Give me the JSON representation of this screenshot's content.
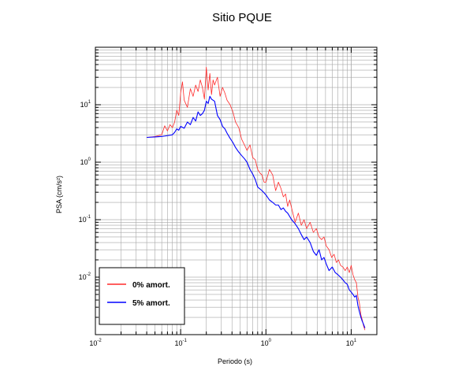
{
  "chart_data": {
    "type": "line",
    "title": "Sitio PQUE",
    "xlabel": "Periodo (s)",
    "ylabel": "PSA (cm/s²)",
    "x_scale": "log",
    "y_scale": "log",
    "xlim": [
      0.01,
      20
    ],
    "ylim": [
      0.001,
      100
    ],
    "grid": true,
    "legend_position": "bottom-left",
    "x_ticks": [
      {
        "base": "10",
        "exp": "-2",
        "value": 0.01
      },
      {
        "base": "10",
        "exp": "-1",
        "value": 0.1
      },
      {
        "base": "10",
        "exp": "0",
        "value": 1
      },
      {
        "base": "10",
        "exp": "1",
        "value": 10
      }
    ],
    "y_ticks": [
      {
        "base": "10",
        "exp": "-2",
        "value": 0.01
      },
      {
        "base": "10",
        "exp": "-1",
        "value": 0.1
      },
      {
        "base": "10",
        "exp": "0",
        "value": 1
      },
      {
        "base": "10",
        "exp": "1",
        "value": 10
      }
    ],
    "series": [
      {
        "name": "0% amort.",
        "color": "#ff2a2a",
        "x": [
          0.04,
          0.05,
          0.06,
          0.065,
          0.07,
          0.075,
          0.08,
          0.085,
          0.09,
          0.095,
          0.1,
          0.105,
          0.11,
          0.12,
          0.13,
          0.14,
          0.15,
          0.16,
          0.17,
          0.18,
          0.19,
          0.2,
          0.21,
          0.22,
          0.23,
          0.24,
          0.25,
          0.27,
          0.29,
          0.31,
          0.33,
          0.35,
          0.38,
          0.41,
          0.44,
          0.48,
          0.52,
          0.56,
          0.6,
          0.65,
          0.7,
          0.75,
          0.8,
          0.85,
          0.9,
          0.95,
          1.0,
          1.1,
          1.2,
          1.3,
          1.4,
          1.5,
          1.6,
          1.7,
          1.8,
          1.9,
          2.0,
          2.2,
          2.4,
          2.6,
          2.8,
          3.0,
          3.3,
          3.6,
          3.9,
          4.2,
          4.5,
          4.8,
          5.1,
          5.5,
          5.9,
          6.3,
          6.7,
          7.1,
          7.5,
          8.0,
          8.5,
          9.0,
          9.5,
          10.0,
          10.5,
          11.0,
          11.5,
          12.0,
          12.5,
          13.0,
          13.5,
          14.0,
          14.5
        ],
        "y": [
          2.7,
          2.8,
          3.0,
          4.3,
          3.5,
          4.5,
          4.0,
          5.0,
          8.0,
          6.5,
          16.0,
          25.0,
          12.0,
          9.0,
          19.0,
          14.0,
          22.0,
          17.0,
          27.0,
          20.0,
          12.5,
          45.0,
          18.0,
          35.0,
          15.0,
          27.0,
          22.0,
          30.0,
          14.0,
          20.0,
          16.0,
          12.0,
          10.0,
          7.5,
          5.0,
          4.0,
          2.5,
          2.0,
          1.6,
          2.0,
          1.2,
          1.1,
          0.75,
          0.65,
          0.6,
          0.45,
          0.45,
          0.75,
          0.6,
          0.32,
          0.45,
          0.35,
          0.25,
          0.28,
          0.17,
          0.22,
          0.16,
          0.09,
          0.13,
          0.08,
          0.1,
          0.07,
          0.09,
          0.06,
          0.07,
          0.05,
          0.045,
          0.05,
          0.035,
          0.03,
          0.022,
          0.025,
          0.018,
          0.02,
          0.016,
          0.015,
          0.013,
          0.015,
          0.012,
          0.016,
          0.011,
          0.009,
          0.008,
          0.0045,
          0.0035,
          0.0022,
          0.0018,
          0.0014,
          0.0012
        ]
      },
      {
        "name": "5% amort.",
        "color": "#0000ff",
        "x": [
          0.04,
          0.05,
          0.06,
          0.07,
          0.08,
          0.085,
          0.09,
          0.095,
          0.1,
          0.11,
          0.12,
          0.13,
          0.14,
          0.15,
          0.16,
          0.17,
          0.18,
          0.19,
          0.2,
          0.21,
          0.22,
          0.23,
          0.25,
          0.27,
          0.29,
          0.31,
          0.33,
          0.35,
          0.38,
          0.41,
          0.44,
          0.48,
          0.52,
          0.56,
          0.6,
          0.65,
          0.7,
          0.75,
          0.8,
          0.9,
          1.0,
          1.1,
          1.2,
          1.3,
          1.4,
          1.5,
          1.6,
          1.7,
          1.8,
          2.0,
          2.2,
          2.4,
          2.6,
          2.8,
          3.0,
          3.3,
          3.6,
          3.9,
          4.2,
          4.5,
          4.8,
          5.1,
          5.5,
          6.0,
          6.5,
          7.0,
          7.5,
          8.0,
          8.5,
          9.0,
          9.5,
          10.0,
          10.5,
          11.0,
          11.5,
          12.0,
          12.5,
          13.0,
          13.5,
          14.0,
          14.5
        ],
        "y": [
          2.7,
          2.75,
          2.8,
          2.9,
          3.0,
          3.3,
          3.8,
          3.6,
          4.2,
          3.9,
          5.0,
          4.5,
          6.0,
          5.2,
          7.5,
          6.5,
          7.0,
          8.0,
          11.5,
          10.5,
          14.0,
          12.5,
          11.5,
          6.5,
          5.5,
          4.2,
          3.8,
          3.2,
          2.6,
          2.2,
          1.8,
          1.5,
          1.3,
          1.15,
          1.0,
          0.75,
          0.62,
          0.5,
          0.37,
          0.32,
          0.27,
          0.22,
          0.2,
          0.18,
          0.18,
          0.15,
          0.16,
          0.14,
          0.13,
          0.1,
          0.085,
          0.07,
          0.055,
          0.045,
          0.05,
          0.04,
          0.028,
          0.024,
          0.03,
          0.02,
          0.022,
          0.017,
          0.013,
          0.015,
          0.012,
          0.011,
          0.01,
          0.009,
          0.008,
          0.0075,
          0.006,
          0.0055,
          0.005,
          0.0045,
          0.0048,
          0.0032,
          0.0025,
          0.002,
          0.0017,
          0.0015,
          0.0013
        ]
      }
    ]
  }
}
